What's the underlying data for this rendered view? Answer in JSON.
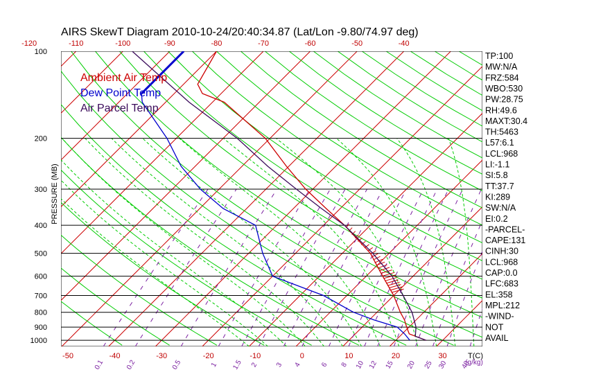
{
  "chart_data": {
    "type": "line",
    "title": "AIRS SkewT Diagram 2010-10-24/20:40:34.87 (Lat/Lon -9.80/74.97 deg)",
    "ylabel": "PRESSURE (MB)",
    "y_scale": "log",
    "ylim": [
      1050,
      100
    ],
    "pressure_ticks": [
      100,
      200,
      300,
      400,
      500,
      600,
      700,
      800,
      900,
      1000
    ],
    "bottom_temp_ticks": [
      "-50",
      "-40",
      "-30",
      "-20",
      "-10",
      "0",
      "10",
      "20",
      "30"
    ],
    "bottom_temp_unit": "T(C)",
    "top_temp_ticks": [
      "-120",
      "-110",
      "-100",
      "-90",
      "-80",
      "-70",
      "-60",
      "-50",
      "-40"
    ],
    "mixing_ratio_ticks": [
      "0.1",
      "0.2",
      "0.5",
      "1",
      "1.5",
      "2",
      "3",
      "4",
      "6",
      "8",
      "10",
      "12",
      "15",
      "20",
      "25",
      "30",
      "40"
    ],
    "mixing_ratio_unit": "(g/kg)",
    "series": [
      {
        "name": "Ambient Air Temp",
        "color": "#cc0000",
        "points": [
          [
            1000,
            26.5
          ],
          [
            950,
            21.5
          ],
          [
            900,
            19.5
          ],
          [
            850,
            17.5
          ],
          [
            800,
            15.0
          ],
          [
            700,
            10.0
          ],
          [
            600,
            3.5
          ],
          [
            500,
            -4.0
          ],
          [
            400,
            -15.5
          ],
          [
            350,
            -23.0
          ],
          [
            300,
            -31.5
          ],
          [
            250,
            -40.5
          ],
          [
            200,
            -51.0
          ],
          [
            150,
            -67.5
          ],
          [
            140,
            -74.0
          ],
          [
            130,
            -77.0
          ],
          [
            100,
            -80.0
          ]
        ]
      },
      {
        "name": "Dew Point Temp",
        "color": "#0000cc",
        "points": [
          [
            1000,
            23.0
          ],
          [
            950,
            20.5
          ],
          [
            900,
            17.5
          ],
          [
            850,
            11.0
          ],
          [
            800,
            5.0
          ],
          [
            700,
            -5.0
          ],
          [
            600,
            -20.0
          ],
          [
            500,
            -27.0
          ],
          [
            400,
            -34.5
          ],
          [
            350,
            -45.0
          ],
          [
            300,
            -54.0
          ],
          [
            250,
            -63.0
          ],
          [
            200,
            -72.0
          ],
          [
            150,
            -85.0
          ],
          [
            140,
            -87.0
          ],
          [
            100,
            -87.0
          ]
        ]
      },
      {
        "name": "Air Parcel Temp",
        "color": "#3a0a5a",
        "points": [
          [
            1000,
            26.5
          ],
          [
            968,
            23.3
          ],
          [
            900,
            21.5
          ],
          [
            800,
            17.5
          ],
          [
            700,
            12.0
          ],
          [
            600,
            5.5
          ],
          [
            500,
            -3.5
          ],
          [
            400,
            -15.5
          ],
          [
            350,
            -24.0
          ],
          [
            300,
            -33.5
          ],
          [
            250,
            -44.5
          ],
          [
            200,
            -57.0
          ],
          [
            150,
            -75.0
          ],
          [
            100,
            -98.0
          ]
        ]
      }
    ],
    "wind": "NOT AVAIL",
    "indices": [
      "TP:100",
      "MW:N/A",
      "FRZ:584",
      "WBO:530",
      "PW:28.75",
      "RH:49.6",
      "MAXT:30.4",
      "TH:5463",
      "L57:6.1",
      "LCL:968",
      "LI:-1.1",
      "SI:5.8",
      "TT:37.7",
      "KI:289",
      "SW:N/A",
      "EI:0.2",
      "-PARCEL-",
      "CAPE:131",
      "CINH:30",
      "LCL:968",
      "CAP:0.0",
      "LFC:683",
      "EL:358",
      "MPL:212",
      "-WIND-",
      "NOT",
      "AVAIL"
    ],
    "colors": {
      "isobar": "#000000",
      "isotherm": "#cc0000",
      "dry_adiabat": "#00cc00",
      "moist_adiabat": "#00cc00",
      "mixing_ratio": "#7a1fa0",
      "ambient": "#cc0000",
      "dewpoint": "#0000cc",
      "parcel": "#3a0a5a"
    }
  }
}
